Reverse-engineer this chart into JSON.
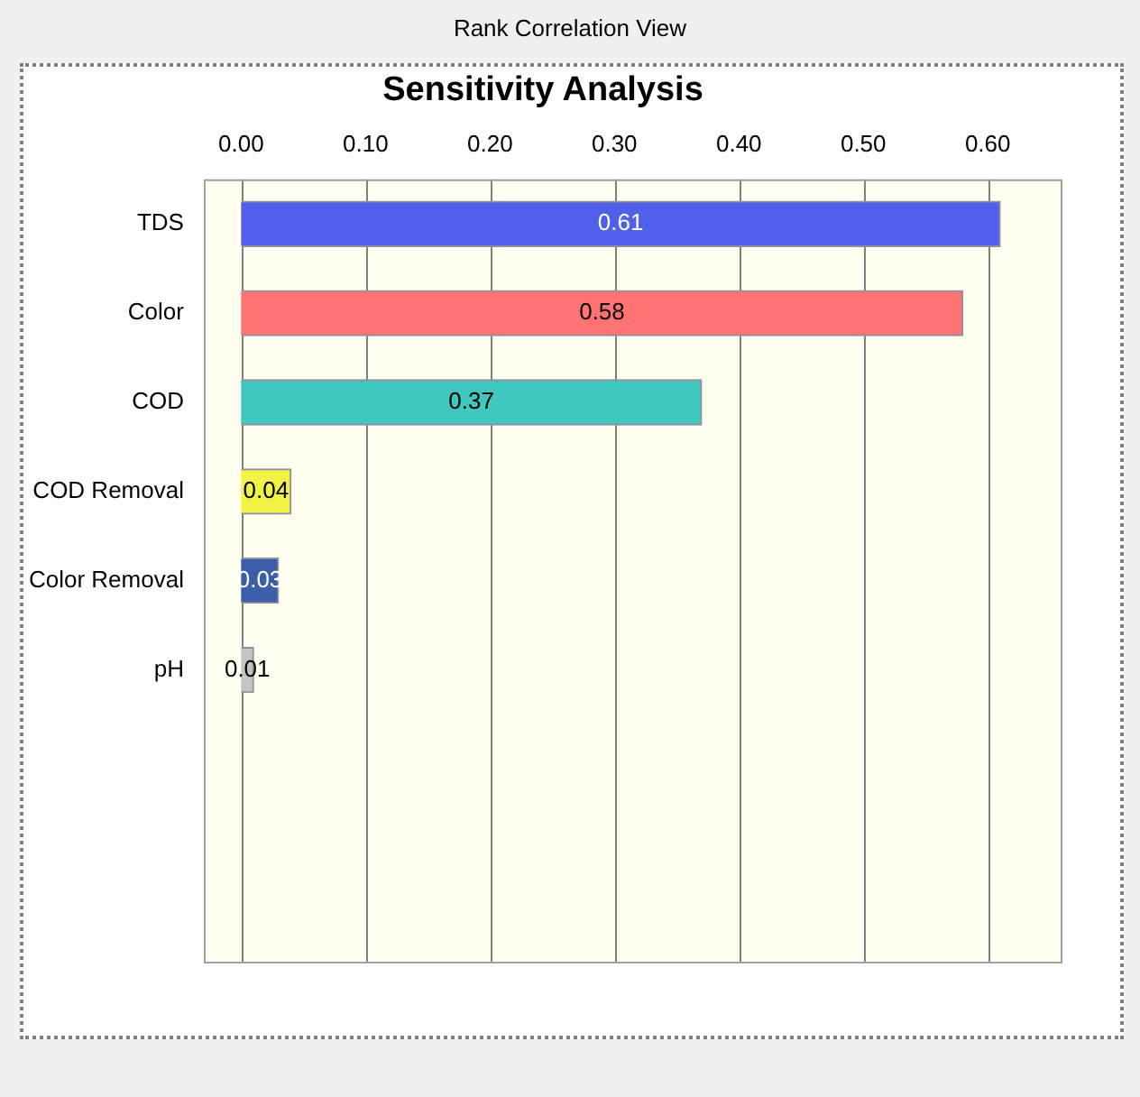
{
  "chart_data": {
    "type": "bar",
    "orientation": "horizontal",
    "title": "Sensitivity Analysis",
    "annotations": [
      "Rank Correlation View"
    ],
    "categories": [
      "TDS",
      "Color",
      "COD",
      "COD Removal",
      "Color Removal",
      "pH"
    ],
    "values": [
      0.61,
      0.58,
      0.37,
      0.04,
      0.03,
      0.01
    ],
    "colors": [
      "#5060e8",
      "#ff7373",
      "#40c8c0",
      "#f2f244",
      "#3a5ea8",
      "#c4c4c4"
    ],
    "xlim": [
      -0.03,
      0.66
    ],
    "xticks": [
      {
        "value": 0,
        "label": "0.00"
      },
      {
        "value": 0.1,
        "label": "0.10"
      },
      {
        "value": 0.2,
        "label": "0.20"
      },
      {
        "value": 0.3,
        "label": "0.30"
      },
      {
        "value": 0.4,
        "label": "0.40"
      },
      {
        "value": 0.5,
        "label": "0.50"
      },
      {
        "value": 0.6,
        "label": "0.60"
      }
    ],
    "grid": "x",
    "data_labels": true
  }
}
